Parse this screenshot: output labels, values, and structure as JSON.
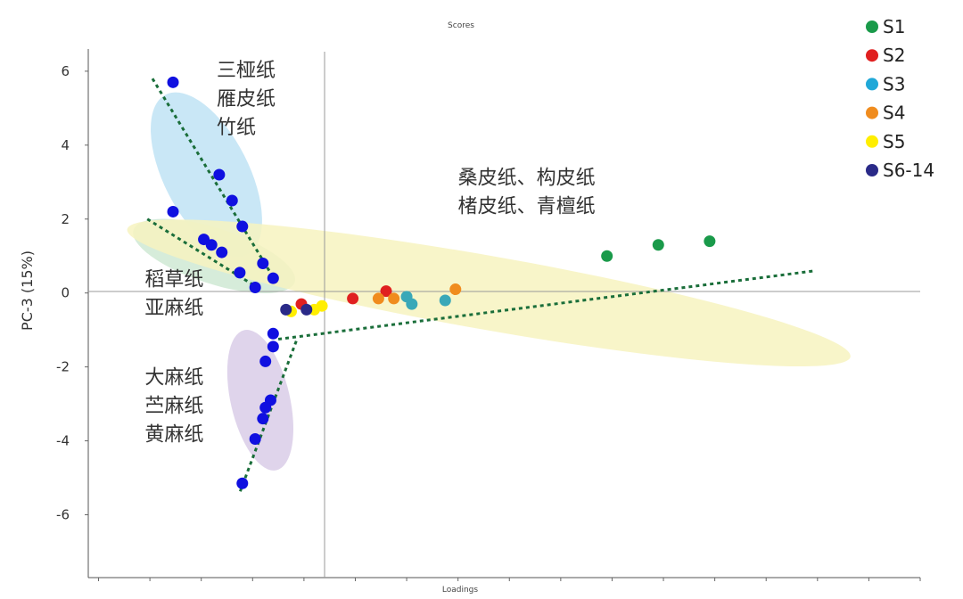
{
  "chart_data": {
    "type": "scatter",
    "title": "Scores",
    "xlabel": "Loadings",
    "ylabel": "PC-3 (15%)",
    "xlim": [
      -10.4,
      22
    ],
    "ylim": [
      -7.7,
      6.6
    ],
    "yticks": [
      6,
      4,
      2,
      0,
      -2,
      -4,
      -6
    ],
    "grid": false,
    "legend_position": "top-right",
    "legend": [
      {
        "label": "S1",
        "color": "#1a9a4a"
      },
      {
        "label": "S2",
        "color": "#e02020"
      },
      {
        "label": "S3",
        "color": "#20a8d8"
      },
      {
        "label": "S4",
        "color": "#f08c1e"
      },
      {
        "label": "S5",
        "color": "#ffee00"
      },
      {
        "label": "S6-14",
        "color": "#2a2a88"
      }
    ],
    "series": [
      {
        "color": "#1a9a4a",
        "points": [
          [
            9.8,
            1.0
          ],
          [
            11.8,
            1.3
          ],
          [
            13.8,
            1.4
          ]
        ]
      },
      {
        "color": "#e02020",
        "points": [
          [
            -2.1,
            -0.3
          ],
          [
            -0.1,
            -0.15
          ],
          [
            1.2,
            0.05
          ]
        ]
      },
      {
        "color": "#3aa8b8",
        "points": [
          [
            2.0,
            -0.1
          ],
          [
            2.2,
            -0.3
          ],
          [
            3.5,
            -0.2
          ]
        ]
      },
      {
        "color": "#f08c1e",
        "points": [
          [
            0.9,
            -0.15
          ],
          [
            1.5,
            -0.15
          ],
          [
            3.9,
            0.1
          ]
        ]
      },
      {
        "color": "#ffee00",
        "points": [
          [
            -2.5,
            -0.5
          ],
          [
            -1.6,
            -0.45
          ],
          [
            -1.3,
            -0.35
          ]
        ]
      },
      {
        "color": "#2a2a88",
        "points": [
          [
            -2.7,
            -0.45
          ],
          [
            -1.9,
            -0.45
          ]
        ]
      },
      {
        "color": "#1010e0",
        "points": [
          [
            -7.1,
            5.7
          ],
          [
            -5.3,
            3.2
          ],
          [
            -4.8,
            2.5
          ],
          [
            -4.4,
            1.8
          ],
          [
            -7.1,
            2.2
          ],
          [
            -5.9,
            1.45
          ],
          [
            -5.6,
            1.3
          ],
          [
            -5.2,
            1.1
          ],
          [
            -4.5,
            0.55
          ],
          [
            -3.6,
            0.8
          ],
          [
            -3.2,
            0.4
          ],
          [
            -3.9,
            0.15
          ],
          [
            -3.2,
            -1.1
          ],
          [
            -3.2,
            -1.45
          ],
          [
            -3.5,
            -1.85
          ],
          [
            -3.3,
            -2.9
          ],
          [
            -3.5,
            -3.1
          ],
          [
            -3.6,
            -3.4
          ],
          [
            -3.9,
            -3.95
          ],
          [
            -4.4,
            -5.15
          ]
        ]
      }
    ],
    "ellipses": [
      {
        "color": "#bfe3f5",
        "cx": -5.8,
        "cy": 3.2,
        "rx": 3.5,
        "ry": 1.15,
        "angle": 63
      },
      {
        "color": "#cfe9d3",
        "cx": -5.5,
        "cy": 1.0,
        "rx": 3.3,
        "ry": 0.75,
        "angle": 18
      },
      {
        "color": "#d9cde8",
        "cx": -3.7,
        "cy": -2.9,
        "rx": 2.8,
        "ry": 0.8,
        "angle": 77
      },
      {
        "color": "#f7f3c0",
        "cx": 5.2,
        "cy": 0.0,
        "rx": 14.3,
        "ry": 1.0,
        "angle": 10
      }
    ],
    "trend_lines": [
      {
        "color": "#1a6e3a",
        "from": [
          -7.9,
          5.8
        ],
        "to": [
          -3.0,
          0.2
        ]
      },
      {
        "color": "#1a6e3a",
        "from": [
          -8.1,
          2.0
        ],
        "to": [
          -3.7,
          0.1
        ]
      },
      {
        "color": "#1a6e3a",
        "from": [
          -2.3,
          -1.3
        ],
        "to": [
          -4.5,
          -5.4
        ]
      },
      {
        "color": "#1a6e3a",
        "from": [
          -3.0,
          -1.25
        ],
        "to": [
          17.9,
          0.6
        ]
      }
    ],
    "annotations": [
      {
        "lines": [
          "三桠纸",
          "雁皮纸",
          "竹纸"
        ],
        "x": -5.4,
        "y": 5.85
      },
      {
        "lines": [
          "稻草纸",
          "亚麻纸"
        ],
        "x": -8.2,
        "y": 0.2
      },
      {
        "lines": [
          "大麻纸",
          "苎麻纸",
          "黄麻纸"
        ],
        "x": -8.2,
        "y": -2.45
      },
      {
        "lines": [
          "桑皮纸、构皮纸",
          "楮皮纸、青檀纸"
        ],
        "x": 4.0,
        "y": 2.95
      }
    ]
  }
}
